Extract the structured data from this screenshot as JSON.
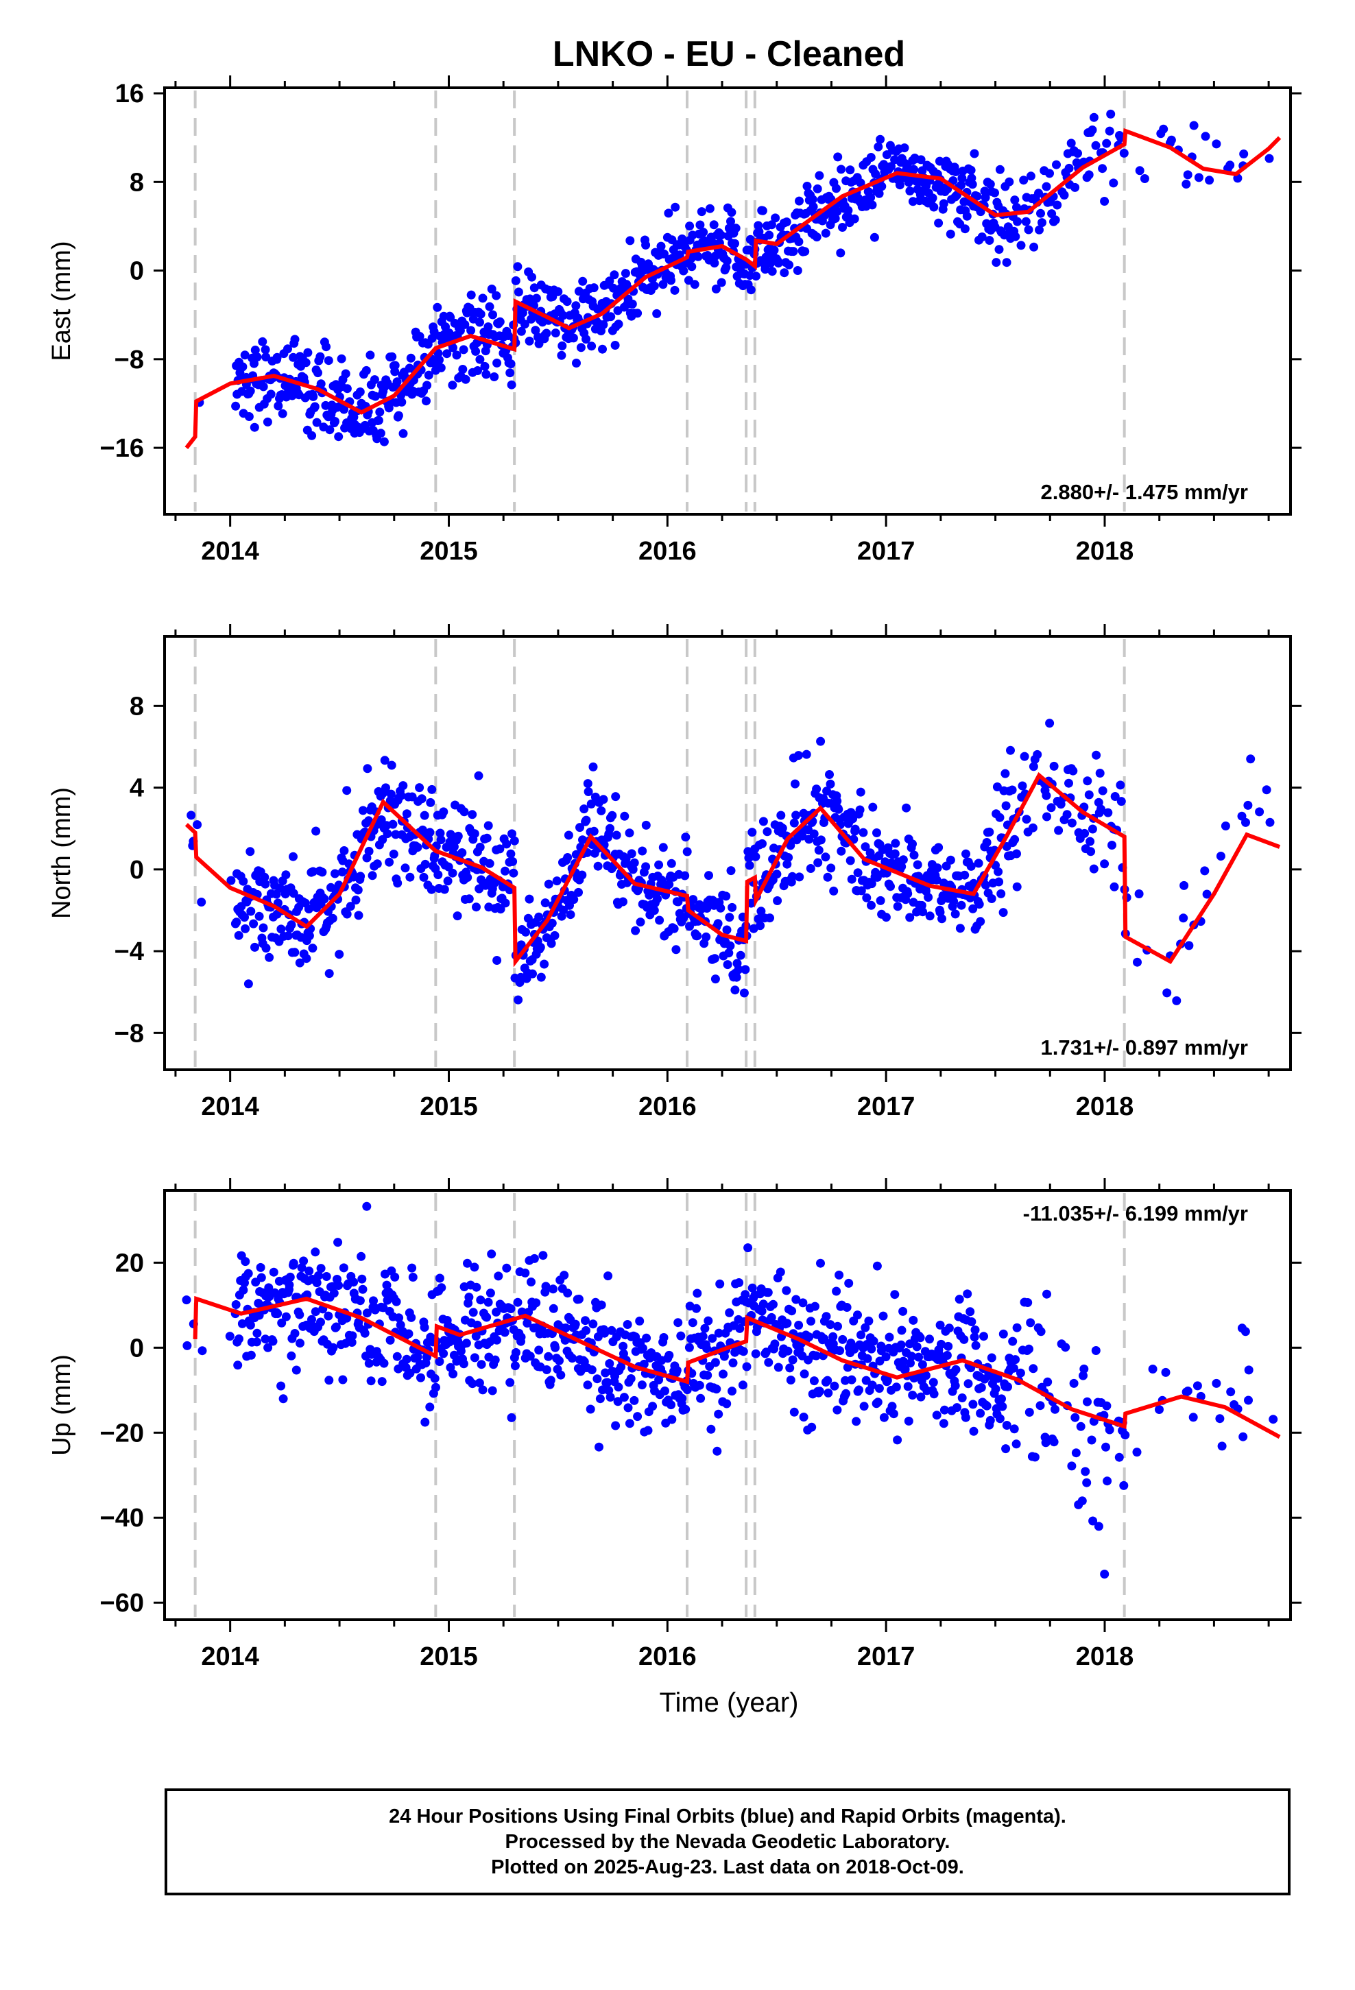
{
  "title": "LNKO  - EU - Cleaned",
  "xlabel": "Time (year)",
  "x_ticks": [
    "2014",
    "2015",
    "2016",
    "2017",
    "2018"
  ],
  "footer": {
    "line1": "24 Hour Positions Using Final Orbits (blue) and Rapid Orbits (magenta).",
    "line2": "Processed by the Nevada Geodetic Laboratory.",
    "line3": "Plotted on 2025-Aug-23. Last data on 2018-Oct-09."
  },
  "colors": {
    "points": "#0000ff",
    "model": "#ff0000",
    "steps": "#c8c8c8",
    "axes": "#000000"
  },
  "chart_data": [
    {
      "type": "scatter",
      "component": "East",
      "ylabel": "East (mm)",
      "xlim": [
        2013.7,
        2018.85
      ],
      "ylim": [
        -22,
        16.5
      ],
      "yticks": [
        16,
        8,
        0,
        -8,
        -16
      ],
      "ytick_labels": [
        "16",
        "8",
        "0",
        "−8",
        "−16"
      ],
      "rate_label": "2.880+/- 1.475 mm/yr",
      "rate_position": "bottom-right",
      "step_epochs": [
        2013.84,
        2014.94,
        2015.3,
        2016.09,
        2016.36,
        2016.4,
        2018.09
      ],
      "trend_per_year": 2.88,
      "scatter_sigma": 1.8,
      "model_curve": [
        [
          2013.8,
          -16.0
        ],
        [
          2013.84,
          -15.0
        ],
        [
          2013.845,
          -11.8
        ],
        [
          2014.0,
          -10.2
        ],
        [
          2014.2,
          -9.5
        ],
        [
          2014.4,
          -10.7
        ],
        [
          2014.6,
          -12.8
        ],
        [
          2014.75,
          -11.3
        ],
        [
          2014.94,
          -7.0
        ],
        [
          2015.1,
          -5.9
        ],
        [
          2015.3,
          -7.1
        ],
        [
          2015.305,
          -2.8
        ],
        [
          2015.45,
          -4.2
        ],
        [
          2015.55,
          -5.2
        ],
        [
          2015.7,
          -3.9
        ],
        [
          2015.9,
          -0.6
        ],
        [
          2016.09,
          1.2
        ],
        [
          2016.095,
          1.7
        ],
        [
          2016.25,
          2.2
        ],
        [
          2016.36,
          1.0
        ],
        [
          2016.4,
          0.4
        ],
        [
          2016.405,
          2.7
        ],
        [
          2016.5,
          2.4
        ],
        [
          2016.8,
          6.7
        ],
        [
          2017.05,
          8.8
        ],
        [
          2017.25,
          8.3
        ],
        [
          2017.5,
          5.0
        ],
        [
          2017.65,
          5.3
        ],
        [
          2017.9,
          9.3
        ],
        [
          2018.09,
          11.4
        ],
        [
          2018.095,
          12.6
        ],
        [
          2018.3,
          11.1
        ],
        [
          2018.45,
          9.2
        ],
        [
          2018.6,
          8.7
        ],
        [
          2018.75,
          11.0
        ],
        [
          2018.8,
          12.0
        ]
      ]
    },
    {
      "type": "scatter",
      "component": "North",
      "ylabel": "North (mm)",
      "xlim": [
        2013.7,
        2018.85
      ],
      "ylim": [
        -9.8,
        11.4
      ],
      "yticks": [
        8,
        4,
        0,
        -4,
        -8
      ],
      "ytick_labels": [
        "8",
        "4",
        "0",
        "−4",
        "−8"
      ],
      "rate_label": "1.731+/- 0.897 mm/yr",
      "rate_position": "bottom-right",
      "step_epochs": [
        2013.84,
        2014.94,
        2015.3,
        2016.09,
        2016.36,
        2016.4,
        2018.09
      ],
      "trend_per_year": 1.731,
      "scatter_sigma": 1.3,
      "model_curve": [
        [
          2013.8,
          2.2
        ],
        [
          2013.84,
          1.8
        ],
        [
          2013.845,
          0.6
        ],
        [
          2014.0,
          -0.9
        ],
        [
          2014.2,
          -1.8
        ],
        [
          2014.35,
          -2.8
        ],
        [
          2014.5,
          -1.2
        ],
        [
          2014.7,
          3.3
        ],
        [
          2014.94,
          0.9
        ],
        [
          2015.15,
          0.1
        ],
        [
          2015.3,
          -0.9
        ],
        [
          2015.305,
          -4.5
        ],
        [
          2015.45,
          -2.5
        ],
        [
          2015.65,
          1.6
        ],
        [
          2015.85,
          -0.7
        ],
        [
          2016.09,
          -1.3
        ],
        [
          2016.095,
          -2.0
        ],
        [
          2016.25,
          -3.2
        ],
        [
          2016.36,
          -3.5
        ],
        [
          2016.365,
          -0.6
        ],
        [
          2016.4,
          -0.4
        ],
        [
          2016.405,
          -1.5
        ],
        [
          2016.55,
          1.5
        ],
        [
          2016.7,
          3.0
        ],
        [
          2016.9,
          0.5
        ],
        [
          2017.2,
          -0.8
        ],
        [
          2017.4,
          -1.2
        ],
        [
          2017.55,
          1.6
        ],
        [
          2017.7,
          4.6
        ],
        [
          2017.9,
          2.8
        ],
        [
          2018.09,
          1.6
        ],
        [
          2018.095,
          -3.3
        ],
        [
          2018.3,
          -4.5
        ],
        [
          2018.5,
          -1.2
        ],
        [
          2018.65,
          1.7
        ],
        [
          2018.8,
          1.1
        ]
      ]
    },
    {
      "type": "scatter",
      "component": "Up",
      "ylabel": "Up (mm)",
      "xlim": [
        2013.7,
        2018.85
      ],
      "ylim": [
        -64,
        37
      ],
      "yticks": [
        20,
        0,
        -20,
        -40,
        -60
      ],
      "ytick_labels": [
        "20",
        "0",
        "−20",
        "−40",
        "−60"
      ],
      "rate_label": "-11.035+/- 6.199 mm/yr",
      "rate_position": "top-right",
      "step_epochs": [
        2013.84,
        2014.94,
        2015.3,
        2016.09,
        2016.36,
        2016.4,
        2018.09
      ],
      "trend_per_year": -11.035,
      "scatter_sigma": 7.5,
      "model_curve": [
        [
          2013.84,
          2.0
        ],
        [
          2013.845,
          11.5
        ],
        [
          2014.05,
          8.0
        ],
        [
          2014.35,
          11.5
        ],
        [
          2014.6,
          7.0
        ],
        [
          2014.94,
          -2.0
        ],
        [
          2014.945,
          5.0
        ],
        [
          2015.05,
          3.0
        ],
        [
          2015.35,
          7.5
        ],
        [
          2015.6,
          1.5
        ],
        [
          2015.85,
          -4.5
        ],
        [
          2016.09,
          -8.0
        ],
        [
          2016.095,
          -3.5
        ],
        [
          2016.25,
          -0.5
        ],
        [
          2016.36,
          1.5
        ],
        [
          2016.365,
          7.0
        ],
        [
          2016.6,
          2.0
        ],
        [
          2016.8,
          -3.0
        ],
        [
          2017.05,
          -7.0
        ],
        [
          2017.35,
          -3.0
        ],
        [
          2017.6,
          -7.5
        ],
        [
          2017.85,
          -14.5
        ],
        [
          2018.09,
          -18.5
        ],
        [
          2018.095,
          -15.5
        ],
        [
          2018.35,
          -11.5
        ],
        [
          2018.55,
          -14.0
        ],
        [
          2018.8,
          -21.0
        ]
      ]
    }
  ]
}
